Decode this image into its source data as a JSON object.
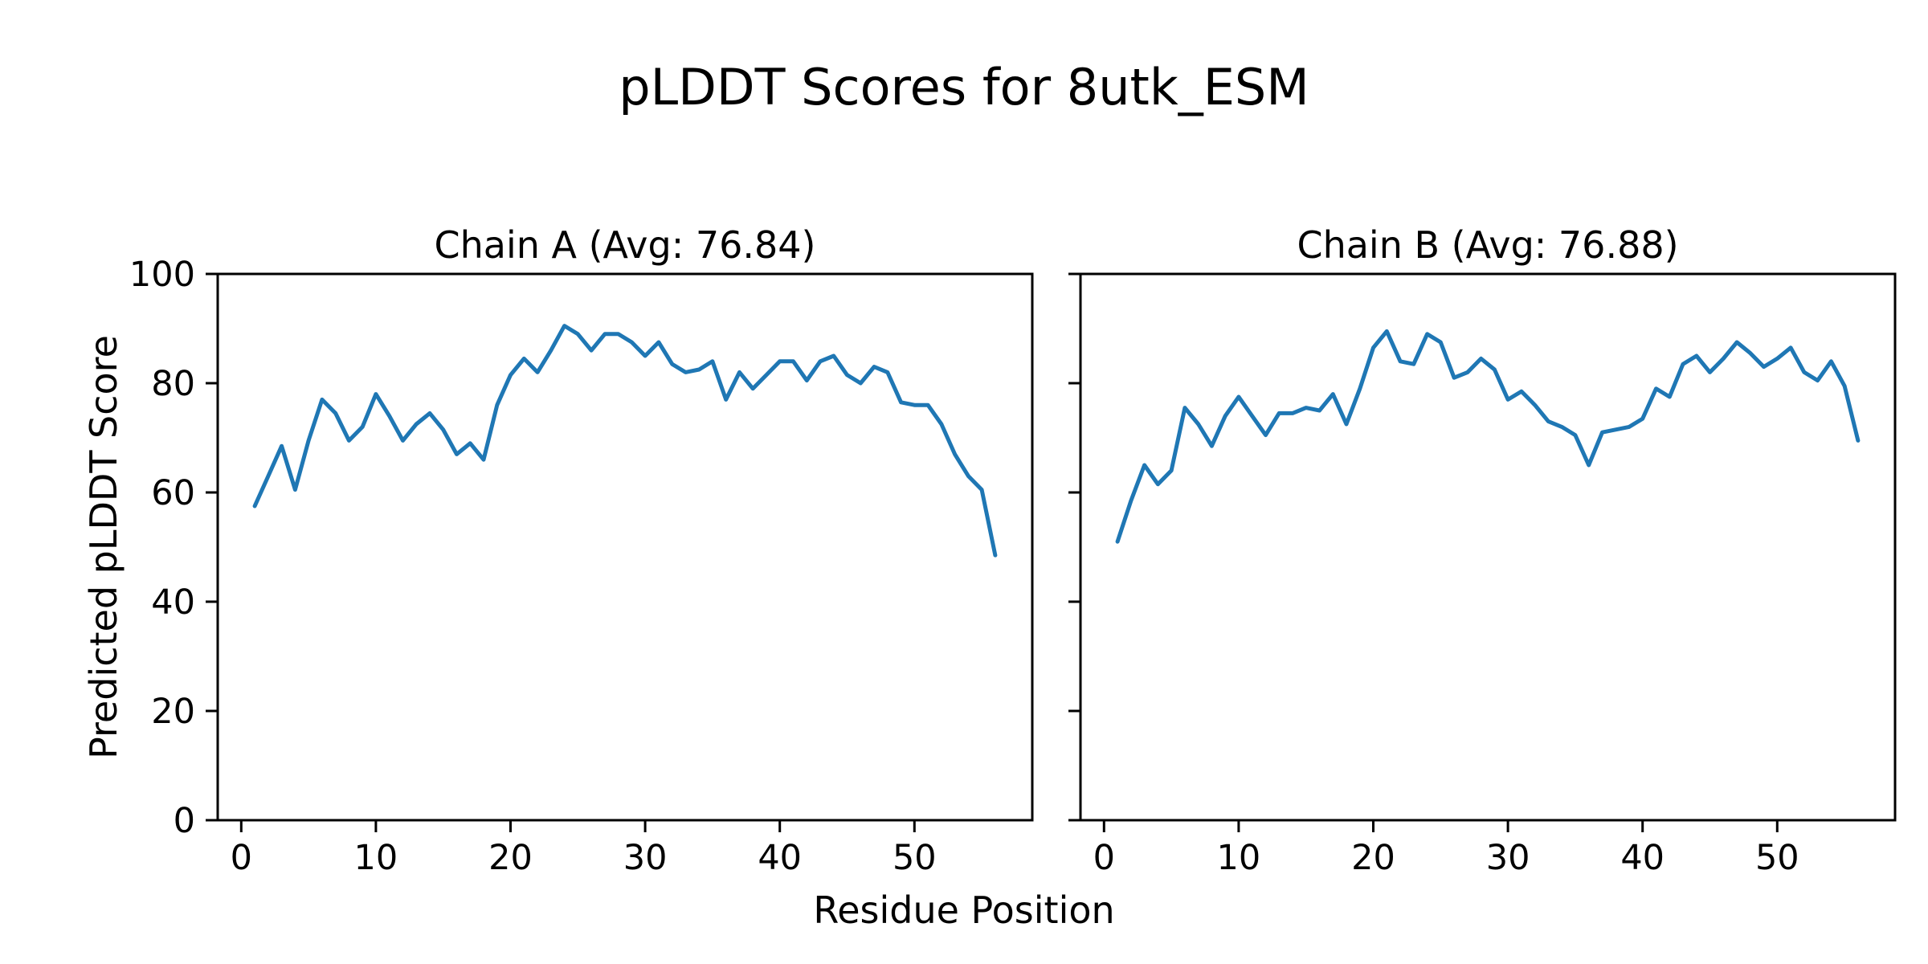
{
  "figure": {
    "title": "pLDDT Scores for 8utk_ESM"
  },
  "axis_labels": {
    "x": "Residue Position",
    "y": "Predicted pLDDT Score"
  },
  "chart_data": [
    {
      "type": "line",
      "title": "Chain A (Avg: 76.84)",
      "chain": "A",
      "avg": 76.84,
      "xlabel": "Residue Position",
      "ylabel": "Predicted pLDDT Score",
      "x_start": 1,
      "xlim": [
        -1.75,
        58.75
      ],
      "ylim": [
        0,
        100
      ],
      "x_ticks": [
        0,
        10,
        20,
        30,
        40,
        50
      ],
      "y_ticks": [
        0,
        20,
        40,
        60,
        80,
        100
      ],
      "show_y_tick_labels": true,
      "grid": false,
      "line_color": "#1f77b4",
      "series": [
        {
          "name": "Chain A pLDDT",
          "values": [
            57.5,
            63,
            68.5,
            60.5,
            69.5,
            77,
            74.5,
            69.5,
            72,
            78,
            74,
            69.5,
            72.5,
            74.5,
            71.5,
            67,
            69,
            66,
            76,
            81.5,
            84.5,
            82,
            86,
            90.5,
            89,
            86,
            89,
            89,
            87.5,
            85,
            87.5,
            83.5,
            82,
            82.5,
            84,
            77,
            82,
            79,
            81.5,
            84,
            84,
            80.5,
            84,
            85,
            81.5,
            80,
            83,
            82,
            76.5,
            76,
            76,
            72.5,
            67,
            63,
            60.5,
            48.5
          ]
        }
      ]
    },
    {
      "type": "line",
      "title": "Chain B (Avg: 76.88)",
      "chain": "B",
      "avg": 76.88,
      "xlabel": "Residue Position",
      "ylabel": "Predicted pLDDT Score",
      "x_start": 1,
      "xlim": [
        -1.75,
        58.75
      ],
      "ylim": [
        0,
        100
      ],
      "x_ticks": [
        0,
        10,
        20,
        30,
        40,
        50
      ],
      "y_ticks": [
        0,
        20,
        40,
        60,
        80,
        100
      ],
      "show_y_tick_labels": false,
      "grid": false,
      "line_color": "#1f77b4",
      "series": [
        {
          "name": "Chain B pLDDT",
          "values": [
            51,
            58.5,
            65,
            61.5,
            64,
            75.5,
            72.5,
            68.5,
            74,
            77.5,
            74,
            70.5,
            74.5,
            74.5,
            75.5,
            75,
            78,
            72.5,
            79,
            86.5,
            89.5,
            84,
            83.5,
            89,
            87.5,
            81,
            82,
            84.5,
            82.5,
            77,
            78.5,
            76,
            73,
            72,
            70.5,
            65,
            71,
            71.5,
            72,
            73.5,
            79,
            77.5,
            83.5,
            85,
            82,
            84.5,
            87.5,
            85.5,
            83,
            84.5,
            86.5,
            82,
            80.5,
            84,
            79.5,
            69.5
          ]
        }
      ]
    }
  ]
}
